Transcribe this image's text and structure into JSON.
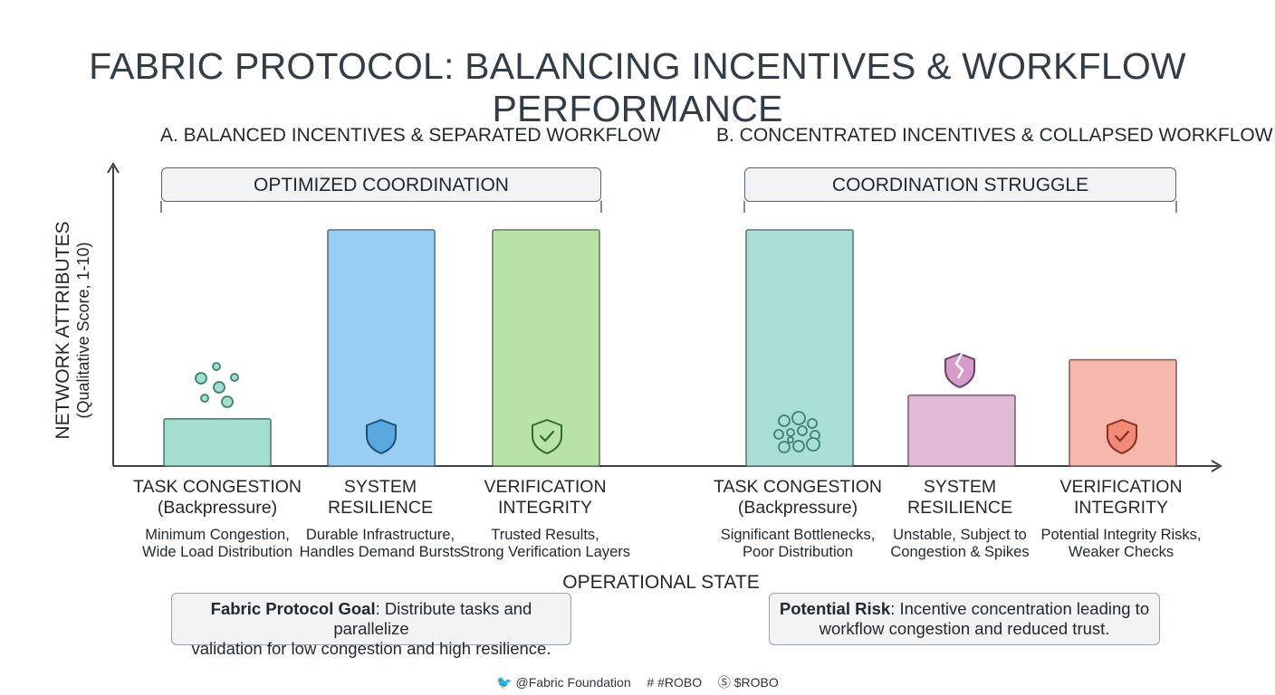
{
  "title": "FABRIC PROTOCOL: BALANCING INCENTIVES & WORKFLOW PERFORMANCE",
  "axes": {
    "ylabel": "NETWORK ATTRIBUTES",
    "ylabel_sub": "(Qualitative Score, 1-10)",
    "xlabel": "OPERATIONAL STATE"
  },
  "colors": {
    "congestion_balanced": "#a3ded0",
    "resilience_balanced": "#99cdf2",
    "integrity_balanced": "#b9e3a6",
    "congestion_concentrated": "#a9ded8",
    "resilience_concentrated": "#dfbad6",
    "integrity_concentrated": "#f5b6ab"
  },
  "chart_data": [
    {
      "type": "bar",
      "title": "A. BALANCED INCENTIVES & SEPARATED WORKFLOW",
      "bracket": "OPTIMIZED COORDINATION",
      "categories": [
        {
          "line1": "TASK CONGESTION",
          "line2": "(Backpressure)",
          "desc1": "Minimum Congestion,",
          "desc2": "Wide Load Distribution",
          "value": 2,
          "color_key": "congestion_balanced",
          "icon": "dots-icon"
        },
        {
          "line1": "SYSTEM",
          "line2": "RESILIENCE",
          "desc1": "Durable Infrastructure,",
          "desc2": "Handles Demand Bursts",
          "value": 10,
          "color_key": "resilience_balanced",
          "icon": "shield-icon"
        },
        {
          "line1": "VERIFICATION",
          "line2": "INTEGRITY",
          "desc1": "Trusted Results,",
          "desc2": "Strong Verification Layers",
          "value": 10,
          "color_key": "integrity_balanced",
          "icon": "shield-check-icon"
        }
      ],
      "ylim": [
        0,
        10
      ]
    },
    {
      "type": "bar",
      "title": "B. CONCENTRATED INCENTIVES & COLLAPSED WORKFLOW",
      "bracket": "COORDINATION STRUGGLE",
      "categories": [
        {
          "line1": "TASK CONGESTION",
          "line2": "(Backpressure)",
          "desc1": "Significant Bottlenecks,",
          "desc2": "Poor Distribution",
          "value": 10,
          "color_key": "congestion_concentrated",
          "icon": "dots-cluster-icon"
        },
        {
          "line1": "SYSTEM",
          "line2": "RESILIENCE",
          "desc1": "Unstable, Subject to",
          "desc2": "Congestion & Spikes",
          "value": 3,
          "color_key": "resilience_concentrated",
          "icon": "broken-shield-icon"
        },
        {
          "line1": "VERIFICATION",
          "line2": "INTEGRITY",
          "desc1": "Potential Integrity Risks,",
          "desc2": "Weaker Checks",
          "value": 4.5,
          "color_key": "integrity_concentrated",
          "icon": "cracked-shield-check-icon"
        }
      ],
      "ylim": [
        0,
        10
      ]
    }
  ],
  "notes": {
    "goal_bold": "Fabric Protocol Goal",
    "goal_text": ": Distribute tasks and parallelize",
    "goal_text2": "validation for low congestion and high resilience.",
    "risk_bold": "Potential Risk",
    "risk_text": ": Incentive concentration leading to",
    "risk_text2": "workflow congestion and reduced trust."
  },
  "footer": {
    "twitter": "@Fabric Foundation",
    "hashtag": "#ROBO",
    "ticker": "$ROBO",
    "twitter_icon": "bird-icon",
    "hash_icon": "hash-icon",
    "coin_icon": "coin-icon"
  }
}
